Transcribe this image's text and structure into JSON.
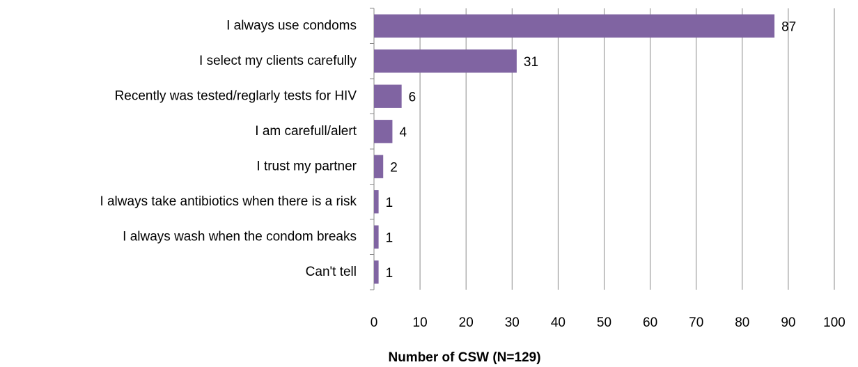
{
  "chart_data": {
    "type": "bar",
    "orientation": "horizontal",
    "x_label": "Number of CSW (N=129)",
    "categories": [
      "I always use condoms",
      "I select my clients carefully",
      "Recently was tested/reglarly tests for HIV",
      "I am carefull/alert",
      "I trust my partner",
      "I always take antibiotics when there is a risk",
      "I always wash when the condom breaks",
      "Can't tell"
    ],
    "values": [
      87,
      31,
      6,
      4,
      2,
      1,
      1,
      1
    ],
    "color": "#8064a2",
    "xlim": [
      0,
      100
    ],
    "xticks": [
      0,
      10,
      20,
      30,
      40,
      50,
      60,
      70,
      80,
      90,
      100
    ],
    "grid": true
  }
}
